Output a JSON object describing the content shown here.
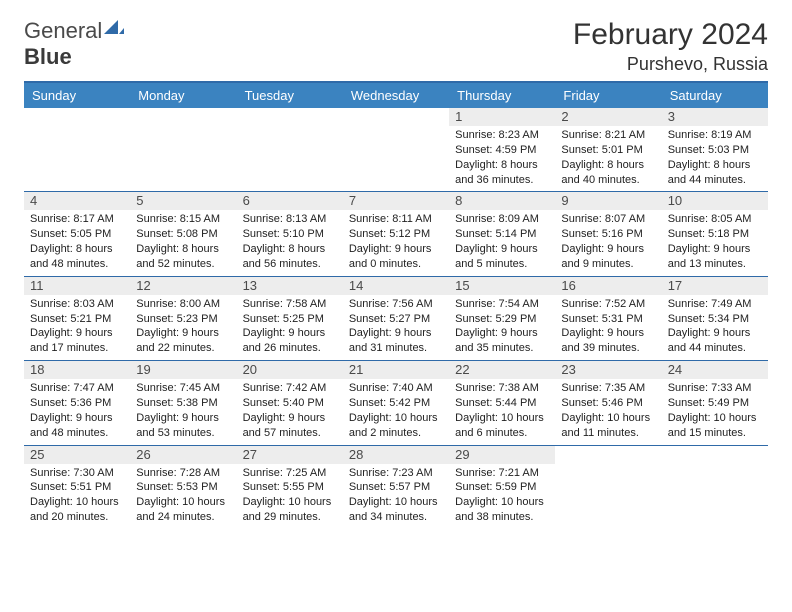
{
  "logo": {
    "text1": "General",
    "text2": "Blue"
  },
  "title": "February 2024",
  "location": "Purshevo, Russia",
  "colors": {
    "header_bg": "#3b83c0",
    "rule": "#2f6aa8",
    "daynum_bg": "#ededed",
    "page_bg": "#ffffff"
  },
  "days": [
    "Sunday",
    "Monday",
    "Tuesday",
    "Wednesday",
    "Thursday",
    "Friday",
    "Saturday"
  ],
  "weeks": [
    [
      null,
      null,
      null,
      null,
      {
        "n": "1",
        "sr": "8:23 AM",
        "ss": "4:59 PM",
        "dl": "8 hours and 36 minutes."
      },
      {
        "n": "2",
        "sr": "8:21 AM",
        "ss": "5:01 PM",
        "dl": "8 hours and 40 minutes."
      },
      {
        "n": "3",
        "sr": "8:19 AM",
        "ss": "5:03 PM",
        "dl": "8 hours and 44 minutes."
      }
    ],
    [
      {
        "n": "4",
        "sr": "8:17 AM",
        "ss": "5:05 PM",
        "dl": "8 hours and 48 minutes."
      },
      {
        "n": "5",
        "sr": "8:15 AM",
        "ss": "5:08 PM",
        "dl": "8 hours and 52 minutes."
      },
      {
        "n": "6",
        "sr": "8:13 AM",
        "ss": "5:10 PM",
        "dl": "8 hours and 56 minutes."
      },
      {
        "n": "7",
        "sr": "8:11 AM",
        "ss": "5:12 PM",
        "dl": "9 hours and 0 minutes."
      },
      {
        "n": "8",
        "sr": "8:09 AM",
        "ss": "5:14 PM",
        "dl": "9 hours and 5 minutes."
      },
      {
        "n": "9",
        "sr": "8:07 AM",
        "ss": "5:16 PM",
        "dl": "9 hours and 9 minutes."
      },
      {
        "n": "10",
        "sr": "8:05 AM",
        "ss": "5:18 PM",
        "dl": "9 hours and 13 minutes."
      }
    ],
    [
      {
        "n": "11",
        "sr": "8:03 AM",
        "ss": "5:21 PM",
        "dl": "9 hours and 17 minutes."
      },
      {
        "n": "12",
        "sr": "8:00 AM",
        "ss": "5:23 PM",
        "dl": "9 hours and 22 minutes."
      },
      {
        "n": "13",
        "sr": "7:58 AM",
        "ss": "5:25 PM",
        "dl": "9 hours and 26 minutes."
      },
      {
        "n": "14",
        "sr": "7:56 AM",
        "ss": "5:27 PM",
        "dl": "9 hours and 31 minutes."
      },
      {
        "n": "15",
        "sr": "7:54 AM",
        "ss": "5:29 PM",
        "dl": "9 hours and 35 minutes."
      },
      {
        "n": "16",
        "sr": "7:52 AM",
        "ss": "5:31 PM",
        "dl": "9 hours and 39 minutes."
      },
      {
        "n": "17",
        "sr": "7:49 AM",
        "ss": "5:34 PM",
        "dl": "9 hours and 44 minutes."
      }
    ],
    [
      {
        "n": "18",
        "sr": "7:47 AM",
        "ss": "5:36 PM",
        "dl": "9 hours and 48 minutes."
      },
      {
        "n": "19",
        "sr": "7:45 AM",
        "ss": "5:38 PM",
        "dl": "9 hours and 53 minutes."
      },
      {
        "n": "20",
        "sr": "7:42 AM",
        "ss": "5:40 PM",
        "dl": "9 hours and 57 minutes."
      },
      {
        "n": "21",
        "sr": "7:40 AM",
        "ss": "5:42 PM",
        "dl": "10 hours and 2 minutes."
      },
      {
        "n": "22",
        "sr": "7:38 AM",
        "ss": "5:44 PM",
        "dl": "10 hours and 6 minutes."
      },
      {
        "n": "23",
        "sr": "7:35 AM",
        "ss": "5:46 PM",
        "dl": "10 hours and 11 minutes."
      },
      {
        "n": "24",
        "sr": "7:33 AM",
        "ss": "5:49 PM",
        "dl": "10 hours and 15 minutes."
      }
    ],
    [
      {
        "n": "25",
        "sr": "7:30 AM",
        "ss": "5:51 PM",
        "dl": "10 hours and 20 minutes."
      },
      {
        "n": "26",
        "sr": "7:28 AM",
        "ss": "5:53 PM",
        "dl": "10 hours and 24 minutes."
      },
      {
        "n": "27",
        "sr": "7:25 AM",
        "ss": "5:55 PM",
        "dl": "10 hours and 29 minutes."
      },
      {
        "n": "28",
        "sr": "7:23 AM",
        "ss": "5:57 PM",
        "dl": "10 hours and 34 minutes."
      },
      {
        "n": "29",
        "sr": "7:21 AM",
        "ss": "5:59 PM",
        "dl": "10 hours and 38 minutes."
      },
      null,
      null
    ]
  ],
  "labels": {
    "sunrise": "Sunrise: ",
    "sunset": "Sunset: ",
    "daylight": "Daylight: "
  }
}
